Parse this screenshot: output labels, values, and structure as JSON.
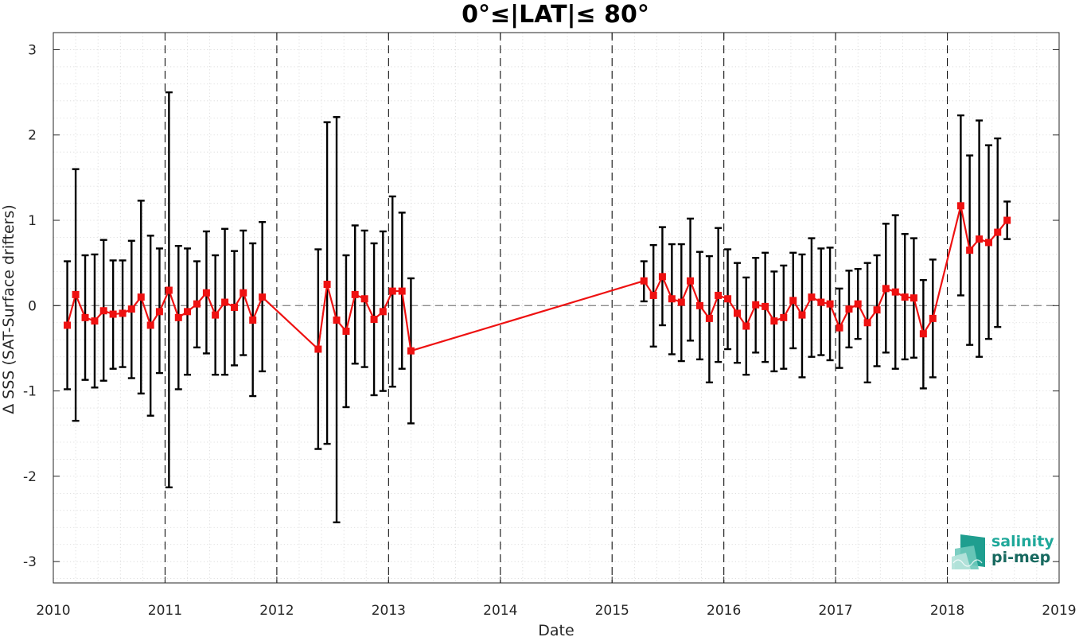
{
  "chart_data": {
    "type": "line",
    "title": "0°≤|LAT|≤ 80°",
    "xlabel": "Date",
    "ylabel": "Δ SSS (SAT-Surface drifters)",
    "xlim": [
      2010,
      2019
    ],
    "ylim": [
      -3.25,
      3.2
    ],
    "x_ticks": [
      "2010",
      "2011",
      "2012",
      "2013",
      "2014",
      "2015",
      "2016",
      "2017",
      "2018",
      "2019"
    ],
    "y_ticks": [
      "3",
      "2",
      "1",
      "0",
      "-1",
      "-2",
      "-3"
    ],
    "grid": true,
    "zero_line": 0,
    "year_separators": [
      2011,
      2012,
      2013,
      2014,
      2015,
      2016,
      2017,
      2018
    ],
    "series": [
      {
        "marker": "square",
        "error_bars": true,
        "color": "#ee1111",
        "errorbar_color": "#000000",
        "points": [
          {
            "x": 2010.125,
            "y": -0.23,
            "lo": -0.98,
            "hi": 0.52
          },
          {
            "x": 2010.2,
            "y": 0.13,
            "lo": -1.35,
            "hi": 1.6
          },
          {
            "x": 2010.285,
            "y": -0.14,
            "lo": -0.87,
            "hi": 0.59
          },
          {
            "x": 2010.37,
            "y": -0.18,
            "lo": -0.96,
            "hi": 0.6
          },
          {
            "x": 2010.45,
            "y": -0.06,
            "lo": -0.88,
            "hi": 0.77
          },
          {
            "x": 2010.535,
            "y": -0.1,
            "lo": -0.74,
            "hi": 0.53
          },
          {
            "x": 2010.62,
            "y": -0.09,
            "lo": -0.72,
            "hi": 0.53
          },
          {
            "x": 2010.7,
            "y": -0.04,
            "lo": -0.85,
            "hi": 0.76
          },
          {
            "x": 2010.785,
            "y": 0.1,
            "lo": -1.03,
            "hi": 1.23
          },
          {
            "x": 2010.87,
            "y": -0.23,
            "lo": -1.29,
            "hi": 0.82
          },
          {
            "x": 2010.95,
            "y": -0.07,
            "lo": -0.79,
            "hi": 0.67
          },
          {
            "x": 2011.035,
            "y": 0.18,
            "lo": -2.13,
            "hi": 2.5
          },
          {
            "x": 2011.12,
            "y": -0.14,
            "lo": -0.98,
            "hi": 0.7
          },
          {
            "x": 2011.2,
            "y": -0.07,
            "lo": -0.81,
            "hi": 0.67
          },
          {
            "x": 2011.285,
            "y": 0.02,
            "lo": -0.49,
            "hi": 0.52
          },
          {
            "x": 2011.37,
            "y": 0.15,
            "lo": -0.56,
            "hi": 0.87
          },
          {
            "x": 2011.45,
            "y": -0.11,
            "lo": -0.81,
            "hi": 0.59
          },
          {
            "x": 2011.535,
            "y": 0.04,
            "lo": -0.81,
            "hi": 0.9
          },
          {
            "x": 2011.62,
            "y": -0.02,
            "lo": -0.7,
            "hi": 0.64
          },
          {
            "x": 2011.7,
            "y": 0.15,
            "lo": -0.58,
            "hi": 0.88
          },
          {
            "x": 2011.785,
            "y": -0.17,
            "lo": -1.06,
            "hi": 0.73
          },
          {
            "x": 2011.87,
            "y": 0.1,
            "lo": -0.77,
            "hi": 0.98
          },
          {
            "x": 2012.37,
            "y": -0.51,
            "lo": -1.68,
            "hi": 0.66
          },
          {
            "x": 2012.45,
            "y": 0.25,
            "lo": -1.62,
            "hi": 2.15
          },
          {
            "x": 2012.535,
            "y": -0.17,
            "lo": -2.54,
            "hi": 2.21
          },
          {
            "x": 2012.62,
            "y": -0.3,
            "lo": -1.19,
            "hi": 0.59
          },
          {
            "x": 2012.7,
            "y": 0.13,
            "lo": -0.68,
            "hi": 0.94
          },
          {
            "x": 2012.785,
            "y": 0.08,
            "lo": -0.72,
            "hi": 0.88
          },
          {
            "x": 2012.87,
            "y": -0.16,
            "lo": -1.05,
            "hi": 0.73
          },
          {
            "x": 2012.95,
            "y": -0.07,
            "lo": -1.0,
            "hi": 0.87
          },
          {
            "x": 2013.035,
            "y": 0.17,
            "lo": -0.95,
            "hi": 1.28
          },
          {
            "x": 2013.12,
            "y": 0.17,
            "lo": -0.74,
            "hi": 1.09
          },
          {
            "x": 2013.2,
            "y": -0.53,
            "lo": -1.38,
            "hi": 0.32
          },
          {
            "x": 2015.285,
            "y": 0.29,
            "lo": 0.05,
            "hi": 0.52
          },
          {
            "x": 2015.37,
            "y": 0.12,
            "lo": -0.48,
            "hi": 0.71
          },
          {
            "x": 2015.45,
            "y": 0.34,
            "lo": -0.23,
            "hi": 0.92
          },
          {
            "x": 2015.535,
            "y": 0.08,
            "lo": -0.57,
            "hi": 0.72
          },
          {
            "x": 2015.62,
            "y": 0.04,
            "lo": -0.65,
            "hi": 0.72
          },
          {
            "x": 2015.7,
            "y": 0.29,
            "lo": -0.41,
            "hi": 1.02
          },
          {
            "x": 2015.785,
            "y": 0.0,
            "lo": -0.63,
            "hi": 0.63
          },
          {
            "x": 2015.87,
            "y": -0.15,
            "lo": -0.9,
            "hi": 0.58
          },
          {
            "x": 2015.95,
            "y": 0.12,
            "lo": -0.66,
            "hi": 0.91
          },
          {
            "x": 2016.035,
            "y": 0.08,
            "lo": -0.51,
            "hi": 0.66
          },
          {
            "x": 2016.12,
            "y": -0.09,
            "lo": -0.67,
            "hi": 0.5
          },
          {
            "x": 2016.2,
            "y": -0.24,
            "lo": -0.81,
            "hi": 0.33
          },
          {
            "x": 2016.285,
            "y": 0.01,
            "lo": -0.55,
            "hi": 0.56
          },
          {
            "x": 2016.37,
            "y": -0.01,
            "lo": -0.66,
            "hi": 0.62
          },
          {
            "x": 2016.45,
            "y": -0.18,
            "lo": -0.77,
            "hi": 0.4
          },
          {
            "x": 2016.535,
            "y": -0.14,
            "lo": -0.74,
            "hi": 0.47
          },
          {
            "x": 2016.62,
            "y": 0.06,
            "lo": -0.5,
            "hi": 0.62
          },
          {
            "x": 2016.7,
            "y": -0.11,
            "lo": -0.84,
            "hi": 0.6
          },
          {
            "x": 2016.785,
            "y": 0.1,
            "lo": -0.6,
            "hi": 0.79
          },
          {
            "x": 2016.87,
            "y": 0.04,
            "lo": -0.58,
            "hi": 0.67
          },
          {
            "x": 2016.95,
            "y": 0.02,
            "lo": -0.64,
            "hi": 0.68
          },
          {
            "x": 2017.035,
            "y": -0.26,
            "lo": -0.73,
            "hi": 0.2
          },
          {
            "x": 2017.12,
            "y": -0.04,
            "lo": -0.49,
            "hi": 0.41
          },
          {
            "x": 2017.2,
            "y": 0.02,
            "lo": -0.39,
            "hi": 0.43
          },
          {
            "x": 2017.285,
            "y": -0.2,
            "lo": -0.9,
            "hi": 0.5
          },
          {
            "x": 2017.37,
            "y": -0.05,
            "lo": -0.71,
            "hi": 0.59
          },
          {
            "x": 2017.45,
            "y": 0.2,
            "lo": -0.55,
            "hi": 0.96
          },
          {
            "x": 2017.535,
            "y": 0.16,
            "lo": -0.74,
            "hi": 1.06
          },
          {
            "x": 2017.62,
            "y": 0.1,
            "lo": -0.63,
            "hi": 0.84
          },
          {
            "x": 2017.7,
            "y": 0.09,
            "lo": -0.61,
            "hi": 0.79
          },
          {
            "x": 2017.785,
            "y": -0.33,
            "lo": -0.97,
            "hi": 0.3
          },
          {
            "x": 2017.87,
            "y": -0.15,
            "lo": -0.84,
            "hi": 0.54
          },
          {
            "x": 2018.12,
            "y": 1.17,
            "lo": 0.12,
            "hi": 2.23
          },
          {
            "x": 2018.2,
            "y": 0.65,
            "lo": -0.46,
            "hi": 1.76
          },
          {
            "x": 2018.285,
            "y": 0.78,
            "lo": -0.6,
            "hi": 2.17
          },
          {
            "x": 2018.37,
            "y": 0.74,
            "lo": -0.39,
            "hi": 1.88
          },
          {
            "x": 2018.45,
            "y": 0.86,
            "lo": -0.25,
            "hi": 1.96
          },
          {
            "x": 2018.535,
            "y": 1.0,
            "lo": 0.78,
            "hi": 1.22
          }
        ]
      }
    ]
  },
  "logo": {
    "line1": "salinity",
    "line2": "pi-mep",
    "color": "#1fa89a"
  }
}
